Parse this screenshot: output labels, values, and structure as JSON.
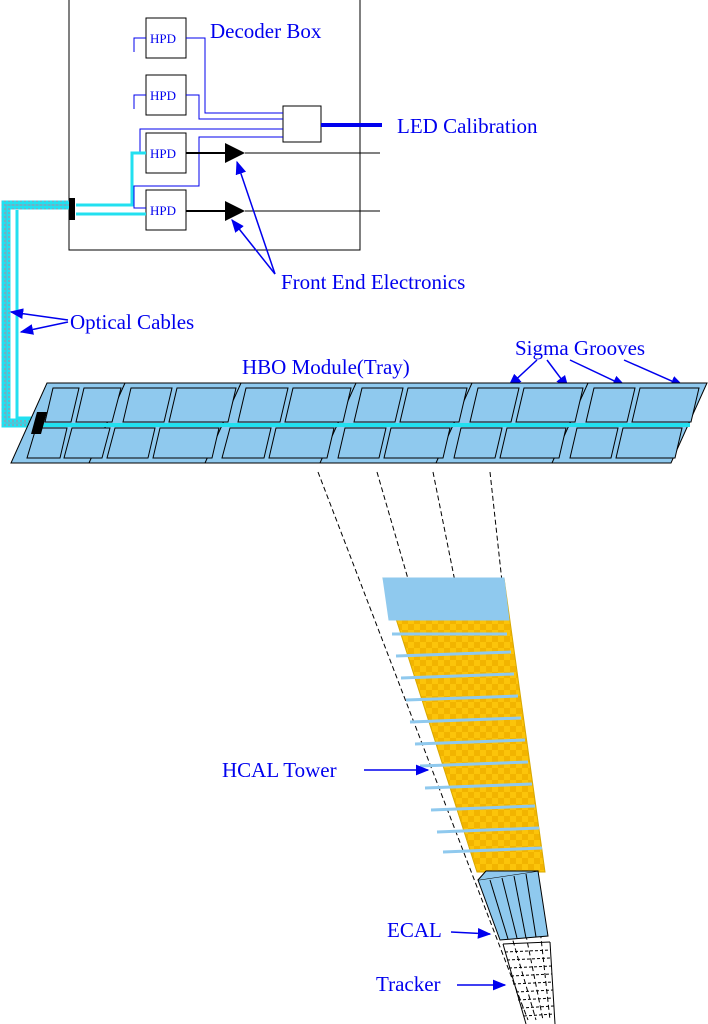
{
  "labels": {
    "decoder_box": "Decoder Box",
    "led_calibration": "LED Calibration",
    "front_end_electronics": "Front End Electronics",
    "optical_cables": "Optical Cables",
    "hbo_module": "HBO Module(Tray)",
    "sigma_grooves": "Sigma Grooves",
    "hcal_tower": "HCAL Tower",
    "ecal": "ECAL",
    "tracker": "Tracker"
  },
  "hpds": [
    "HPD",
    "HPD",
    "HPD",
    "HPD"
  ],
  "colors": {
    "label_blue": "#0000ee",
    "cable_cyan": "#22e0f0",
    "tray_fill": "#8fc9ee",
    "tower_yellow": "#fcc40a",
    "tower_top": "#8fc9ee",
    "ecal_fill": "#8fc9ee",
    "outline": "#000000"
  }
}
